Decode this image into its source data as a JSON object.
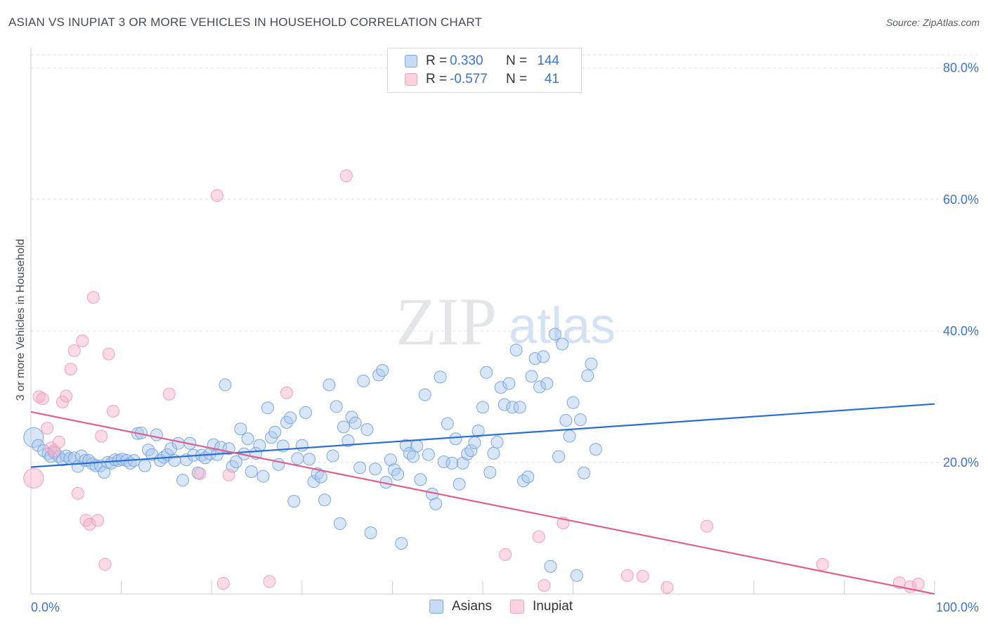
{
  "title": "ASIAN VS INUPIAT 3 OR MORE VEHICLES IN HOUSEHOLD CORRELATION CHART",
  "source": "Source: ZipAtlas.com",
  "watermark": {
    "zip": "ZIP",
    "atlas": "atlas"
  },
  "legend": {
    "r_label": "R =",
    "n_label": "N =",
    "rows": [
      {
        "r": "0.330",
        "n": "144",
        "color": "#7aa7e0"
      },
      {
        "r": "-0.577",
        "n": "41",
        "color": "#f0a0b8"
      }
    ]
  },
  "bottom_legend": [
    "Asians",
    "Inupiat"
  ],
  "chart_data": {
    "type": "scatter",
    "title": "ASIAN VS INUPIAT 3 OR MORE VEHICLES IN HOUSEHOLD CORRELATION CHART",
    "xlabel": "",
    "ylabel": "3 or more Vehicles in Household",
    "xlim": [
      0,
      100
    ],
    "ylim": [
      0,
      82
    ],
    "x_tick_labels": [
      "0.0%",
      "100.0%"
    ],
    "y_ticks": [
      20,
      40,
      60,
      80
    ],
    "y_tick_labels": [
      "20.0%",
      "40.0%",
      "60.0%",
      "80.0%"
    ],
    "grid": true,
    "legend_position": "top-center",
    "colors": {
      "asians": "#7aa7e0",
      "asians_line": "#2a6fcf",
      "inupiat": "#f0a0b8",
      "inupiat_line": "#e0608c",
      "tick_label": "#3d74c8"
    },
    "series": [
      {
        "name": "Asians",
        "r": 0.33,
        "n": 144,
        "trend": [
          [
            0,
            19.3
          ],
          [
            100,
            28.9
          ]
        ],
        "points": [
          [
            0.3,
            23.8
          ],
          [
            0.8,
            22.6
          ],
          [
            1.4,
            21.8
          ],
          [
            1.9,
            21.3
          ],
          [
            2.2,
            20.9
          ],
          [
            2.6,
            21.5
          ],
          [
            3.1,
            20.9
          ],
          [
            3.5,
            20.4
          ],
          [
            3.9,
            21.0
          ],
          [
            4.3,
            20.6
          ],
          [
            4.8,
            20.7
          ],
          [
            5.2,
            19.4
          ],
          [
            5.6,
            21.0
          ],
          [
            6.0,
            20.3
          ],
          [
            6.4,
            20.3
          ],
          [
            6.8,
            19.8
          ],
          [
            7.2,
            19.5
          ],
          [
            7.7,
            19.5
          ],
          [
            8.1,
            18.5
          ],
          [
            8.5,
            20.0
          ],
          [
            8.9,
            19.9
          ],
          [
            9.3,
            20.4
          ],
          [
            9.7,
            20.3
          ],
          [
            10.1,
            20.5
          ],
          [
            10.6,
            20.3
          ],
          [
            11.0,
            19.9
          ],
          [
            11.4,
            20.3
          ],
          [
            11.8,
            24.4
          ],
          [
            12.2,
            24.5
          ],
          [
            12.6,
            19.5
          ],
          [
            13.0,
            21.9
          ],
          [
            13.4,
            21.2
          ],
          [
            13.9,
            24.2
          ],
          [
            14.3,
            20.3
          ],
          [
            14.7,
            20.8
          ],
          [
            15.1,
            21.2
          ],
          [
            15.5,
            22.1
          ],
          [
            15.9,
            20.3
          ],
          [
            16.3,
            22.9
          ],
          [
            16.8,
            17.3
          ],
          [
            17.2,
            20.4
          ],
          [
            17.6,
            22.9
          ],
          [
            18.0,
            21.1
          ],
          [
            18.5,
            18.4
          ],
          [
            18.9,
            21.1
          ],
          [
            19.3,
            20.7
          ],
          [
            19.8,
            21.3
          ],
          [
            20.2,
            22.7
          ],
          [
            20.6,
            21.2
          ],
          [
            21.0,
            22.3
          ],
          [
            21.5,
            31.8
          ],
          [
            21.9,
            22.1
          ],
          [
            22.3,
            19.4
          ],
          [
            22.7,
            20.1
          ],
          [
            23.2,
            25.1
          ],
          [
            23.6,
            21.3
          ],
          [
            24.0,
            23.6
          ],
          [
            24.4,
            18.6
          ],
          [
            24.9,
            21.4
          ],
          [
            25.3,
            22.6
          ],
          [
            25.7,
            17.9
          ],
          [
            26.2,
            28.3
          ],
          [
            26.6,
            23.8
          ],
          [
            27.0,
            24.6
          ],
          [
            27.4,
            19.7
          ],
          [
            27.9,
            22.5
          ],
          [
            28.3,
            26.1
          ],
          [
            28.7,
            26.8
          ],
          [
            29.1,
            14.1
          ],
          [
            29.5,
            20.6
          ],
          [
            30.0,
            22.6
          ],
          [
            30.4,
            27.6
          ],
          [
            30.8,
            20.5
          ],
          [
            31.3,
            17.1
          ],
          [
            31.7,
            18.3
          ],
          [
            32.1,
            17.8
          ],
          [
            32.5,
            14.3
          ],
          [
            33.0,
            31.8
          ],
          [
            33.4,
            21.0
          ],
          [
            33.8,
            28.5
          ],
          [
            34.2,
            10.7
          ],
          [
            34.6,
            25.4
          ],
          [
            35.1,
            23.3
          ],
          [
            35.5,
            26.9
          ],
          [
            35.9,
            26.0
          ],
          [
            36.4,
            19.2
          ],
          [
            36.8,
            32.4
          ],
          [
            37.2,
            25.0
          ],
          [
            37.6,
            9.3
          ],
          [
            38.1,
            19.0
          ],
          [
            38.5,
            33.3
          ],
          [
            38.9,
            34.0
          ],
          [
            39.3,
            17.0
          ],
          [
            39.8,
            20.4
          ],
          [
            40.2,
            18.9
          ],
          [
            40.6,
            18.2
          ],
          [
            41.0,
            7.7
          ],
          [
            41.5,
            22.6
          ],
          [
            41.9,
            21.4
          ],
          [
            42.3,
            20.9
          ],
          [
            42.7,
            22.5
          ],
          [
            43.1,
            17.4
          ],
          [
            43.6,
            30.3
          ],
          [
            44.0,
            21.2
          ],
          [
            44.4,
            15.2
          ],
          [
            44.8,
            13.7
          ],
          [
            45.3,
            33.0
          ],
          [
            45.7,
            20.1
          ],
          [
            46.1,
            25.9
          ],
          [
            46.6,
            19.9
          ],
          [
            47.0,
            23.6
          ],
          [
            47.4,
            16.7
          ],
          [
            47.8,
            19.9
          ],
          [
            48.3,
            21.3
          ],
          [
            48.7,
            21.8
          ],
          [
            49.1,
            23.0
          ],
          [
            49.5,
            24.8
          ],
          [
            50.0,
            28.4
          ],
          [
            50.4,
            33.7
          ],
          [
            50.8,
            18.5
          ],
          [
            51.2,
            21.4
          ],
          [
            51.6,
            23.1
          ],
          [
            52.0,
            31.4
          ],
          [
            52.4,
            28.8
          ],
          [
            52.9,
            32.0
          ],
          [
            53.3,
            28.4
          ],
          [
            53.7,
            37.1
          ],
          [
            54.1,
            28.4
          ],
          [
            54.5,
            17.2
          ],
          [
            55.0,
            17.8
          ],
          [
            55.4,
            33.1
          ],
          [
            55.8,
            35.8
          ],
          [
            56.3,
            31.5
          ],
          [
            56.7,
            36.1
          ],
          [
            57.1,
            32.0
          ],
          [
            57.5,
            4.2
          ],
          [
            58.0,
            39.5
          ],
          [
            58.4,
            20.9
          ],
          [
            58.8,
            38.0
          ],
          [
            59.2,
            26.4
          ],
          [
            59.6,
            24.0
          ],
          [
            60.0,
            29.1
          ],
          [
            60.4,
            2.8
          ],
          [
            60.8,
            26.5
          ],
          [
            61.2,
            18.4
          ],
          [
            61.6,
            33.2
          ],
          [
            62.0,
            35.0
          ],
          [
            62.5,
            22.0
          ]
        ]
      },
      {
        "name": "Inupiat",
        "r": -0.577,
        "n": 41,
        "trend": [
          [
            0,
            27.7
          ],
          [
            100,
            0
          ]
        ],
        "points": [
          [
            0.3,
            17.6
          ],
          [
            0.9,
            30.0
          ],
          [
            1.3,
            29.7
          ],
          [
            1.8,
            25.2
          ],
          [
            2.2,
            22.2
          ],
          [
            2.6,
            21.8
          ],
          [
            3.1,
            23.1
          ],
          [
            3.5,
            29.2
          ],
          [
            3.9,
            30.1
          ],
          [
            4.4,
            34.2
          ],
          [
            4.8,
            37.0
          ],
          [
            5.2,
            15.3
          ],
          [
            5.7,
            38.5
          ],
          [
            6.1,
            11.2
          ],
          [
            6.5,
            10.6
          ],
          [
            6.9,
            45.1
          ],
          [
            7.4,
            11.2
          ],
          [
            7.8,
            24.0
          ],
          [
            8.2,
            4.5
          ],
          [
            8.6,
            36.5
          ],
          [
            9.1,
            27.8
          ],
          [
            15.3,
            30.4
          ],
          [
            18.7,
            18.3
          ],
          [
            20.6,
            60.6
          ],
          [
            21.3,
            1.6
          ],
          [
            21.9,
            18.1
          ],
          [
            26.4,
            1.9
          ],
          [
            28.3,
            30.6
          ],
          [
            34.9,
            63.6
          ],
          [
            52.5,
            6.0
          ],
          [
            56.2,
            8.7
          ],
          [
            56.8,
            1.3
          ],
          [
            58.9,
            10.8
          ],
          [
            66.0,
            2.8
          ],
          [
            67.7,
            2.7
          ],
          [
            70.4,
            1.0
          ],
          [
            74.8,
            10.3
          ],
          [
            87.6,
            4.5
          ],
          [
            96.1,
            1.7
          ],
          [
            97.3,
            1.1
          ],
          [
            98.2,
            1.5
          ]
        ]
      }
    ]
  }
}
